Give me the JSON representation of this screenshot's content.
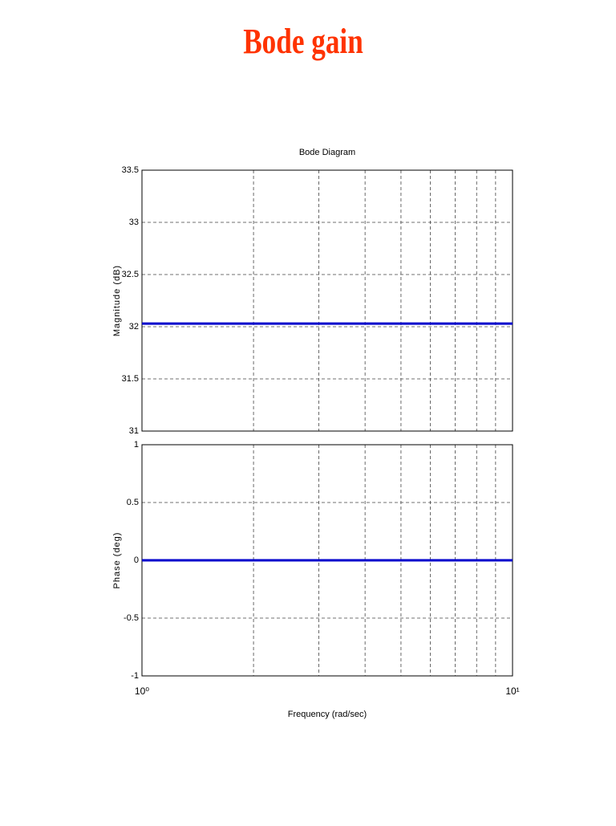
{
  "slide_title": "Bode gain",
  "chart_data": [
    {
      "type": "line",
      "title": "Bode Diagram",
      "ylabel": "Magnitude (dB)",
      "xscale": "log",
      "xlim": [
        1,
        10
      ],
      "x_grid": [
        2,
        3,
        4,
        5,
        6,
        7,
        8,
        9
      ],
      "grid": true,
      "ylim": [
        31,
        33.5
      ],
      "yticks": [
        31,
        31.5,
        32,
        32.5,
        33,
        33.5
      ],
      "x": [
        1,
        10
      ],
      "series": [
        {
          "name": "Magnitude",
          "color": "#0000cc",
          "values": [
            32.03,
            32.03
          ]
        }
      ]
    },
    {
      "type": "line",
      "ylabel": "Phase (deg)",
      "xlabel": "Frequency  (rad/sec)",
      "xscale": "log",
      "xlim": [
        1,
        10
      ],
      "x_grid": [
        2,
        3,
        4,
        5,
        6,
        7,
        8,
        9
      ],
      "grid": true,
      "xticks": [
        {
          "value": 1,
          "label": "10⁰"
        },
        {
          "value": 10,
          "label": "10¹"
        }
      ],
      "ylim": [
        -1,
        1
      ],
      "yticks": [
        -1,
        -0.5,
        0,
        0.5,
        1
      ],
      "x": [
        1,
        10
      ],
      "series": [
        {
          "name": "Phase",
          "color": "#0000cc",
          "values": [
            0,
            0
          ]
        }
      ]
    }
  ]
}
